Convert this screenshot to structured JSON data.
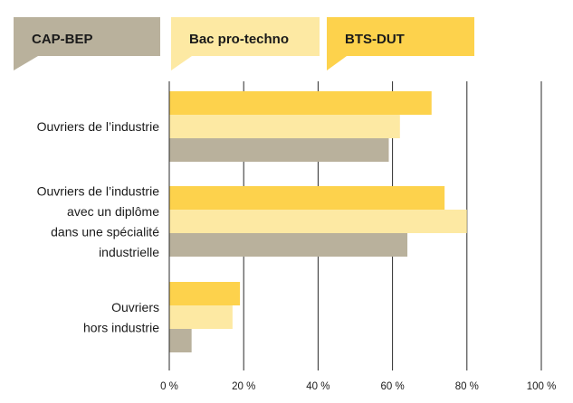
{
  "chart_data": {
    "type": "bar",
    "orientation": "horizontal",
    "categories": [
      [
        "Ouvriers de l’industrie"
      ],
      [
        "Ouvriers de l’industrie",
        "avec un diplôme",
        "dans une spécialité",
        "industrielle"
      ],
      [
        "Ouvriers",
        "hors industrie"
      ]
    ],
    "series": [
      {
        "name": "BTS-DUT",
        "color": "#fdd24c",
        "values": [
          70.5,
          74,
          19
        ]
      },
      {
        "name": "Bac pro-techno",
        "color": "#fde9a3",
        "values": [
          62,
          80,
          17
        ]
      },
      {
        "name": "CAP-BEP",
        "color": "#b9b19c",
        "values": [
          59,
          64,
          6
        ]
      }
    ],
    "legend_order": [
      "CAP-BEP",
      "Bac pro-techno",
      "BTS-DUT"
    ],
    "xlim": [
      0,
      100
    ],
    "xticks": [
      0,
      20,
      40,
      60,
      80,
      100
    ],
    "xtick_labels": [
      "0 %",
      "20 %",
      "40 %",
      "60 %",
      "80 %",
      "100 %"
    ],
    "grid": true,
    "legend_position": "top",
    "title": "",
    "xlabel": "",
    "ylabel": ""
  }
}
